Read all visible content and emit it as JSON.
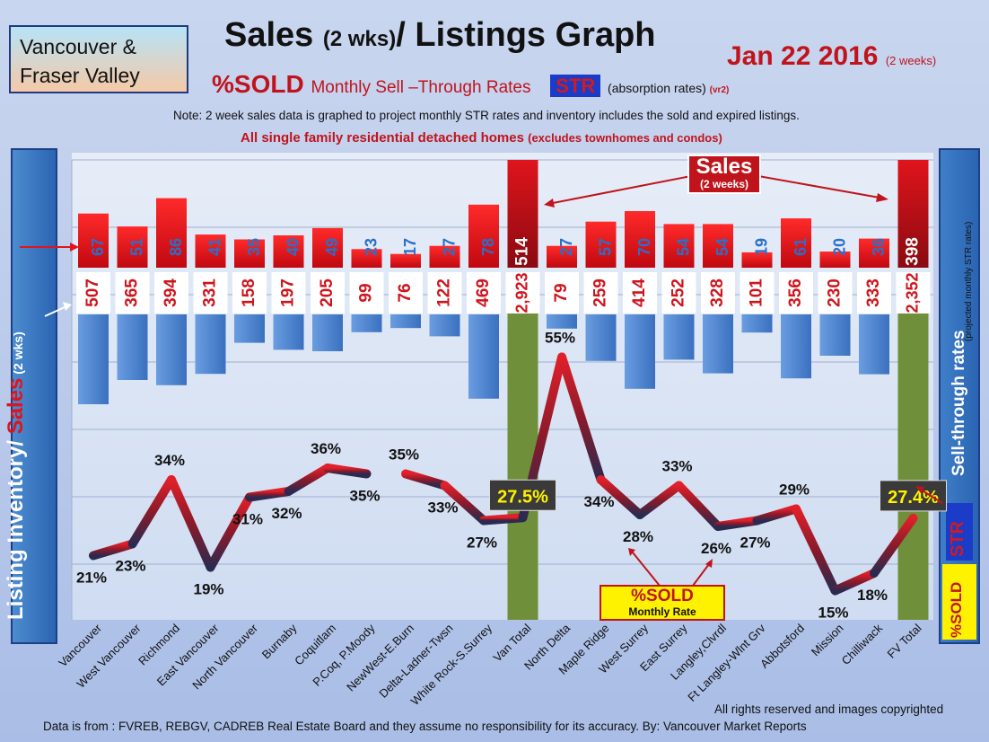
{
  "header": {
    "region": "Vancouver &\nFraser Valley",
    "title_main": "Sales ",
    "title_small": "(2 wks)",
    "title_rest": "/ Listings Graph",
    "date": "Jan 22 2016",
    "date_small": "(2 weeks)",
    "subtitle_sold": "%SOLD",
    "subtitle_monthly": "Monthly Sell –Through Rates",
    "subtitle_str": "STR",
    "subtitle_absorption": "(absorption rates)",
    "subtitle_version": "(vr2)",
    "note": "Note: 2 week sales data is graphed to project monthly STR rates and inventory includes the sold and expired listings.",
    "family": "All single family residential detached homes",
    "family_small": "(excludes townhomes and condos)"
  },
  "left_axis": {
    "inventory": "Listing Inventory/ ",
    "sales": "Sales",
    "wks": " (2 wks)"
  },
  "right_axis": {
    "label": "Sell-through rates",
    "sub": "(projected monthly STR rates)",
    "str": "STR",
    "sold": "%SOLD"
  },
  "annotations": {
    "sales_tag": "Sales",
    "sales_tag_small": "(2 weeks)",
    "sold_box": "%SOLD",
    "sold_box_small": "Monthly Rate",
    "van_total_pct": "27.5%",
    "fv_total_pct": "27.4%"
  },
  "footer": {
    "rights": "All rights reserved and  images copyrighted",
    "source": "Data is from : FVREB, REBGV, CADREB Real Estate Board and they assume no responsibility  for its accuracy. By: Vancouver Market Reports"
  },
  "colors": {
    "sales_bar": "#e8141c",
    "inventory_bar": "#4f86cf",
    "total_bar": "#6f8f3a",
    "line": "#8a1a2a",
    "sold_highlight": "#fff200"
  },
  "chart_data": {
    "type": "bar",
    "categories": [
      "Vancouver",
      "West Vancouver",
      "Richmond",
      "East Vancouver",
      "North Vancouver",
      "Burnaby",
      "Coquitlam",
      "P.Coq, P.Moody",
      "NewWest-E.Burn",
      "Delta-Ladner-Twsn",
      "White Rock-S.Surrey",
      "Van Total",
      "North Delta",
      "Maple Ridge",
      "West Surrey",
      "East Surrey",
      "Langley,Clvrdl",
      "Ft Langley-Wlnt Grv",
      "Abbotsford",
      "Mission",
      "Chilliwack",
      "FV Total"
    ],
    "series": [
      {
        "values": [
          67,
          51,
          86,
          41,
          35,
          40,
          49,
          23,
          17,
          27,
          78,
          514,
          27,
          57,
          70,
          54,
          54,
          19,
          61,
          20,
          36,
          398
        ]
      },
      {
        "values": [
          507,
          365,
          394,
          331,
          158,
          197,
          205,
          99,
          76,
          122,
          469,
          2923,
          79,
          259,
          414,
          252,
          328,
          101,
          356,
          230,
          333,
          2352
        ]
      },
      {
        "values": [
          21,
          23,
          34,
          19,
          31,
          32,
          36,
          35,
          35,
          33,
          27,
          27.5,
          55,
          34,
          28,
          33,
          26,
          27,
          29,
          15,
          18,
          27.4
        ]
      }
    ],
    "inventory_labels": [
      "507",
      "365",
      "394",
      "331",
      "158",
      "197",
      "205",
      "99",
      "76",
      "122",
      "469",
      "2,923",
      "79",
      "259",
      "414",
      "252",
      "328",
      "101",
      "356",
      "230",
      "333",
      "2,352"
    ],
    "percent_labels": [
      "21%",
      "23%",
      "34%",
      "19%",
      "31%",
      "32%",
      "36%",
      "35%",
      "35%",
      "33%",
      "27%",
      "",
      "55%",
      "34%",
      "28%",
      "33%",
      "26%",
      "27%",
      "29%",
      "15%",
      "18%",
      ""
    ],
    "grid": true
  }
}
